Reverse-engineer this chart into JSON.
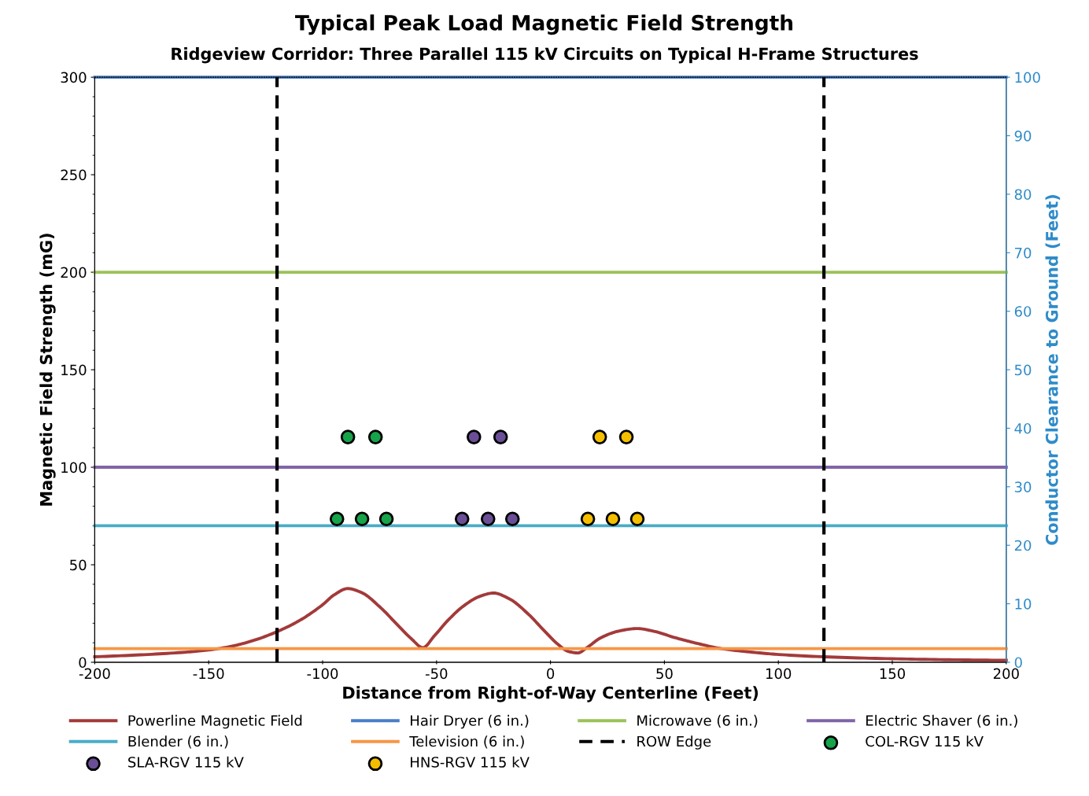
{
  "chart_data": {
    "type": "line",
    "title": "Typical Peak Load Magnetic Field Strength",
    "subtitle": "Ridgeview Corridor: Three Parallel 115 kV Circuits on Typical H-Frame Structures",
    "xlabel": "Distance from Right-of-Way Centerline (Feet)",
    "ylabel": "Magnetic Field Strength (mG)",
    "y2label": "Conductor Clearance to Ground (Feet)",
    "xlim": [
      -200,
      200
    ],
    "xticks": [
      -200,
      -150,
      -100,
      -50,
      0,
      50,
      100,
      150,
      200
    ],
    "ylim": [
      0,
      300
    ],
    "yticks": [
      0,
      50,
      100,
      150,
      200,
      250,
      300
    ],
    "y2lim": [
      0,
      100
    ],
    "y2ticks": [
      0,
      10,
      20,
      30,
      40,
      50,
      60,
      70,
      80,
      90,
      100
    ],
    "grid": false,
    "legend": "bottom",
    "series": [
      {
        "name": "Powerline Magnetic Field",
        "color": "#a33a3a",
        "x": [
          -200,
          -180,
          -160,
          -150,
          -140,
          -130,
          -120,
          -110,
          -100,
          -95,
          -89,
          -83,
          -75,
          -67,
          -61,
          -56,
          -51,
          -45,
          -38,
          -31,
          -25,
          -18,
          -10,
          -3,
          3,
          8,
          12,
          16,
          22,
          30,
          38,
          45,
          55,
          65,
          75,
          90,
          100,
          120,
          150,
          175,
          200
        ],
        "values": [
          2.8,
          3.8,
          5.2,
          6.3,
          8.2,
          11.3,
          15.7,
          21.5,
          29.5,
          34.5,
          37.8,
          35.8,
          28.5,
          19,
          12,
          7.5,
          13.5,
          21.5,
          29,
          33.8,
          35.5,
          32.5,
          25,
          16.5,
          9.5,
          5.5,
          4.8,
          7.5,
          12.5,
          16,
          17.3,
          16,
          12.5,
          9.5,
          7,
          5,
          4,
          2.8,
          1.8,
          1.3,
          1.0
        ]
      },
      {
        "name": "Hair Dryer (6 in.)",
        "color": "#4a7ec8",
        "x": [
          -200,
          200
        ],
        "values": [
          300,
          300
        ]
      },
      {
        "name": "Microwave (6 in.)",
        "color": "#9bc25a",
        "x": [
          -200,
          200
        ],
        "values": [
          200,
          200
        ]
      },
      {
        "name": "Electric Shaver (6 in.)",
        "color": "#8064a8",
        "x": [
          -200,
          200
        ],
        "values": [
          100,
          100
        ]
      },
      {
        "name": "Blender (6 in.)",
        "color": "#4aacc6",
        "x": [
          -200,
          200
        ],
        "values": [
          70,
          70
        ]
      },
      {
        "name": "Television (6 in.)",
        "color": "#f79646",
        "x": [
          -200,
          200
        ],
        "values": [
          7,
          7
        ]
      },
      {
        "name": "ROW Edge",
        "color": "#000000",
        "line_style": "dashed",
        "x": [
          -120,
          -120,
          0,
          120,
          120
        ],
        "values": [
          0,
          300,
          null,
          0,
          300
        ]
      },
      {
        "name": "COL-RGV 115 kV",
        "type": "scatter",
        "axis": "y2",
        "color": "#17a34a",
        "marker": "circle",
        "x": [
          -93.7,
          -82.7,
          -72.0,
          -88.9,
          -76.8
        ],
        "values": [
          24.5,
          24.5,
          24.5,
          38.5,
          38.5
        ]
      },
      {
        "name": "SLA-RGV 115 kV",
        "type": "scatter",
        "axis": "y2",
        "color": "#6a4f96",
        "marker": "circle",
        "x": [
          -38.8,
          -27.4,
          -16.7,
          -33.6,
          -21.9
        ],
        "values": [
          24.5,
          24.5,
          24.5,
          38.5,
          38.5
        ]
      },
      {
        "name": "HNS-RGV 115 kV",
        "type": "scatter",
        "axis": "y2",
        "color": "#f5bf00",
        "marker": "circle",
        "x": [
          16.4,
          27.4,
          38.1,
          21.6,
          33.3
        ],
        "values": [
          24.5,
          24.5,
          24.5,
          38.5,
          38.5
        ]
      }
    ]
  }
}
